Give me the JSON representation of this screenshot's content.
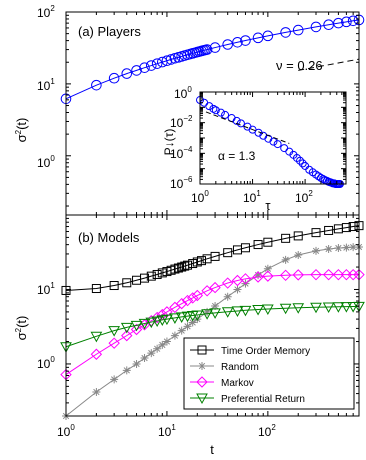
{
  "figure": {
    "panels": [
      "(a) Players",
      "(b) Models"
    ]
  },
  "chart_data": [
    {
      "type": "line",
      "title": "(a) Players",
      "ylabel": "σ²(t)",
      "xlabel": "",
      "xscale": "log",
      "yscale": "log",
      "xlim": [
        1,
        800
      ],
      "ylim": [
        0.15,
        100
      ],
      "y_tick_labels": [
        "10⁰",
        "10¹",
        "10²"
      ],
      "series": [
        {
          "color": "#0000ff",
          "marker": "circle",
          "x": [
            1,
            2,
            3,
            4,
            5,
            6,
            7,
            8,
            9,
            10,
            11,
            12,
            13,
            14,
            15,
            16,
            17,
            18,
            19,
            20,
            21,
            22,
            23,
            24,
            25,
            30,
            40,
            50,
            60,
            80,
            100,
            150,
            200,
            300,
            400,
            500,
            600,
            700,
            800
          ],
          "y": [
            6.2,
            9.6,
            12.0,
            13.9,
            15.4,
            16.8,
            18.0,
            19.1,
            20.1,
            21.0,
            21.9,
            22.7,
            23.4,
            24.1,
            24.8,
            25.4,
            26.0,
            26.6,
            27.1,
            27.7,
            28.2,
            28.7,
            29.2,
            29.6,
            30.0,
            32.0,
            35.3,
            37.9,
            40.1,
            43.7,
            46.6,
            52.0,
            56.0,
            62.0,
            66.5,
            70.0,
            73.0,
            75.5,
            77.5
          ]
        }
      ],
      "reference_line": {
        "label": "ν = 0.26",
        "style": "dashed",
        "x": [
          200,
          800
        ],
        "y": [
          15.4,
          22.1
        ]
      },
      "inset": {
        "type": "scatter",
        "xlabel": "τ",
        "ylabel": "P↓(τ)",
        "xscale": "log",
        "yscale": "log",
        "xlim": [
          1,
          600
        ],
        "ylim": [
          1e-06,
          1
        ],
        "x_tick_labels": [
          "10⁰",
          "10¹",
          "10²"
        ],
        "y_tick_labels": [
          "10⁰",
          "10⁻²",
          "10⁻⁴",
          "10⁻⁶"
        ],
        "reference_line": {
          "label": "α = 1.3",
          "style": "dashed",
          "x": [
            1.3,
            50
          ],
          "y": [
            0.05,
            0.00044
          ]
        },
        "series": [
          {
            "color": "#0000ff",
            "marker": "circle",
            "x": [
              1,
              1.2,
              1.5,
              1.8,
              2,
              2.5,
              3,
              4,
              5,
              6,
              8,
              10,
              13,
              16,
              20,
              25,
              30,
              40,
              50,
              60,
              70,
              80,
              90,
              100,
              120,
              140,
              160,
              180,
              200,
              220,
              240,
              260,
              280,
              300,
              320,
              340,
              360,
              380,
              400,
              420,
              440,
              460
            ],
            "y": [
              0.3,
              0.2,
              0.12,
              0.08,
              0.065,
              0.045,
              0.032,
              0.02,
              0.013,
              0.009,
              0.0055,
              0.0035,
              0.0022,
              0.0014,
              0.0009,
              0.00058,
              0.0004,
              0.00022,
              0.00013,
              8e-05,
              5e-05,
              3.3e-05,
              2.2e-05,
              1.5e-05,
              8.5e-06,
              5.8e-06,
              4.2e-06,
              3.2e-06,
              2.5e-06,
              2.1e-06,
              1.8e-06,
              1.6e-06,
              1.4e-06,
              1.3e-06,
              1.2e-06,
              1.1e-06,
              1.1e-06,
              1e-06,
              1e-06,
              1e-06,
              1e-06,
              1e-06
            ]
          }
        ]
      }
    },
    {
      "type": "line",
      "title": "(b) Models",
      "xlabel": "t",
      "ylabel": "σ²(t)",
      "xscale": "log",
      "yscale": "log",
      "xlim": [
        1,
        800
      ],
      "ylim": [
        0.2,
        100
      ],
      "x_tick_labels": [
        "10⁰",
        "10¹",
        "10²"
      ],
      "y_tick_labels": [
        "10⁰",
        "10¹"
      ],
      "legend_position": "bottom-right",
      "series": [
        {
          "name": "Time Order Memory",
          "color": "#000000",
          "marker": "square",
          "x": [
            1,
            2,
            3,
            4,
            5,
            6,
            7,
            8,
            9,
            10,
            11,
            12,
            13,
            14,
            15,
            16,
            18,
            20,
            22,
            25,
            30,
            40,
            50,
            60,
            80,
            100,
            150,
            200,
            300,
            400,
            500,
            600,
            700,
            800
          ],
          "y": [
            9.7,
            10.3,
            11.3,
            12.3,
            13.3,
            14.2,
            15.1,
            15.9,
            16.7,
            17.4,
            18.1,
            18.8,
            19.4,
            20.0,
            20.6,
            21.2,
            22.3,
            23.4,
            24.4,
            25.8,
            27.8,
            31.2,
            34.0,
            36.3,
            40.1,
            43.1,
            48.6,
            52.4,
            58.0,
            62.0,
            65.2,
            67.8,
            70.0,
            72.0
          ]
        },
        {
          "name": "Random",
          "color": "#888888",
          "marker": "star",
          "x": [
            1,
            2,
            3,
            4,
            5,
            6,
            7,
            8,
            9,
            10,
            12,
            14,
            16,
            18,
            20,
            25,
            30,
            40,
            50,
            60,
            80,
            100,
            150,
            200,
            300,
            400,
            500,
            600,
            700,
            800
          ],
          "y": [
            0.2,
            0.42,
            0.62,
            0.82,
            1.0,
            1.2,
            1.4,
            1.6,
            1.8,
            2.0,
            2.4,
            2.8,
            3.2,
            3.6,
            4.0,
            5.0,
            6.0,
            8.0,
            10.0,
            12.0,
            15.6,
            19.0,
            25.0,
            29.0,
            33.0,
            35.0,
            36.0,
            36.5,
            37.0,
            37.2
          ]
        },
        {
          "name": "Markov",
          "color": "#ff00ff",
          "marker": "diamond",
          "x": [
            1,
            2,
            3,
            4,
            5,
            6,
            7,
            8,
            9,
            10,
            12,
            14,
            16,
            18,
            20,
            25,
            30,
            40,
            50,
            60,
            80,
            100,
            150,
            200,
            300,
            400,
            500,
            600,
            700,
            800
          ],
          "y": [
            0.72,
            1.35,
            1.9,
            2.4,
            2.9,
            3.35,
            3.8,
            4.2,
            4.6,
            5.0,
            5.75,
            6.45,
            7.1,
            7.7,
            8.3,
            9.6,
            10.6,
            12.2,
            13.2,
            13.9,
            14.7,
            15.1,
            15.5,
            15.7,
            15.8,
            15.8,
            15.8,
            15.8,
            15.8,
            15.8
          ]
        },
        {
          "name": "Preferential Return",
          "color": "#008000",
          "marker": "triangle-down",
          "x": [
            1,
            2,
            3,
            4,
            5,
            6,
            7,
            8,
            9,
            10,
            12,
            14,
            16,
            18,
            20,
            25,
            30,
            40,
            50,
            60,
            80,
            100,
            150,
            200,
            300,
            400,
            500,
            600,
            700,
            800
          ],
          "y": [
            1.7,
            2.35,
            2.8,
            3.1,
            3.3,
            3.5,
            3.65,
            3.78,
            3.9,
            4.0,
            4.15,
            4.28,
            4.38,
            4.47,
            4.55,
            4.72,
            4.85,
            5.03,
            5.15,
            5.25,
            5.38,
            5.47,
            5.6,
            5.68,
            5.77,
            5.82,
            5.86,
            5.88,
            5.9,
            5.92
          ]
        }
      ]
    }
  ]
}
